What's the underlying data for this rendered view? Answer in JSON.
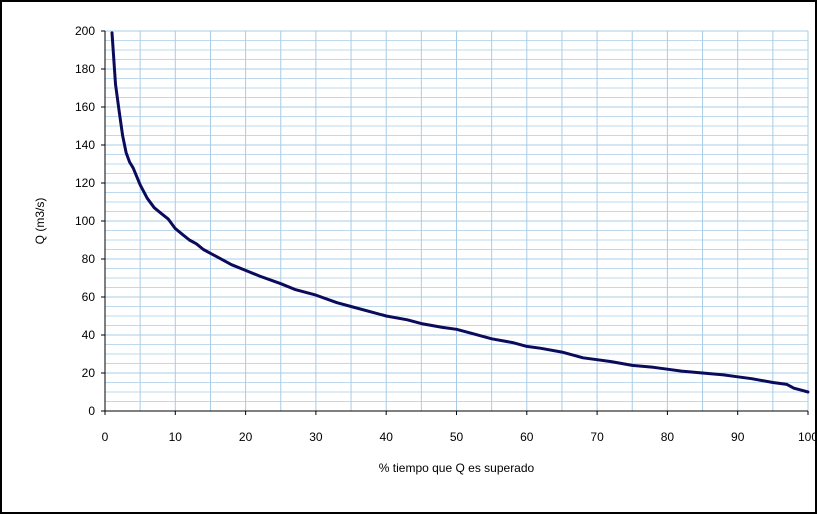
{
  "chart_data": {
    "type": "line",
    "title": "",
    "xlabel": "% tiempo que Q es superado",
    "ylabel": "Q (m3/s)",
    "xlim": [
      0,
      100
    ],
    "ylim": [
      0,
      200
    ],
    "x_ticks": [
      0,
      10,
      20,
      30,
      40,
      50,
      60,
      70,
      80,
      90,
      100
    ],
    "x_tick_labels": [
      "0",
      "10",
      "20",
      "30",
      "40",
      "50",
      "60",
      "70",
      "80",
      "90",
      "100"
    ],
    "y_ticks": [
      0,
      20,
      40,
      60,
      80,
      100,
      120,
      140,
      160,
      180,
      200
    ],
    "y_tick_labels": [
      "0",
      "20",
      "40",
      "60",
      "80",
      "100",
      "120",
      "140",
      "160",
      "180",
      "200"
    ],
    "grid": true,
    "legend": "none",
    "colors": {
      "line": "#0b0b5c",
      "grid": "#a9cce6",
      "axis": "#000000"
    },
    "series": [
      {
        "x": [
          1,
          1.5,
          2,
          2.5,
          3,
          3.5,
          4,
          5,
          6,
          7,
          8,
          9,
          10,
          11,
          12,
          13,
          14,
          15,
          16,
          18,
          20,
          22,
          25,
          27,
          30,
          33,
          35,
          38,
          40,
          43,
          45,
          48,
          50,
          52,
          55,
          58,
          60,
          62,
          65,
          68,
          70,
          72,
          75,
          78,
          80,
          82,
          85,
          88,
          90,
          92,
          95,
          97,
          98,
          99,
          100
        ],
        "y": [
          199,
          172,
          158,
          145,
          136,
          131,
          128,
          119,
          112,
          107,
          104,
          101,
          96,
          93,
          90,
          88,
          85,
          83,
          81,
          77,
          74,
          71,
          67,
          64,
          61,
          57,
          55,
          52,
          50,
          48,
          46,
          44,
          43,
          41,
          38,
          36,
          34,
          33,
          31,
          28,
          27,
          26,
          24,
          23,
          22,
          21,
          20,
          19,
          18,
          17,
          15,
          14,
          12,
          11,
          10
        ]
      }
    ]
  }
}
